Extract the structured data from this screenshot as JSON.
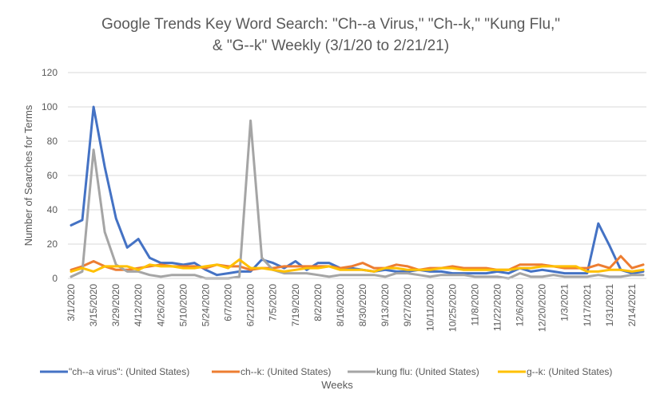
{
  "chart_data": {
    "type": "line",
    "title_lines": [
      "Google Trends Key Word Search: \"Ch--a Virus,\" \"Ch--k,\" \"Kung Flu,\"",
      "& \"G--k\"  Weekly (3/1/20 to 2/21/21)"
    ],
    "xlabel": "Weeks",
    "ylabel": "Number of Searches for Terms",
    "ylim": [
      0,
      120
    ],
    "yticks": [
      0,
      20,
      40,
      60,
      80,
      100,
      120
    ],
    "grid": "horizontal",
    "legend_position": "bottom",
    "x_tick_labels": [
      "3/1/2020",
      "3/15/2020",
      "3/29/2020",
      "4/12/2020",
      "4/26/2020",
      "5/10/2020",
      "5/24/2020",
      "6/7/2020",
      "6/21/2020",
      "7/5/2020",
      "7/19/2020",
      "8/2/2020",
      "8/16/2020",
      "8/30/2020",
      "9/13/2020",
      "9/27/2020",
      "10/11/2020",
      "10/25/2020",
      "11/8/2020",
      "11/22/2020",
      "12/6/2020",
      "12/20/2020",
      "1/3/2021",
      "1/17/2021",
      "1/31/2021",
      "2/14/2021"
    ],
    "x": [
      "3/1/2020",
      "3/8/2020",
      "3/15/2020",
      "3/22/2020",
      "3/29/2020",
      "4/5/2020",
      "4/12/2020",
      "4/19/2020",
      "4/26/2020",
      "5/3/2020",
      "5/10/2020",
      "5/17/2020",
      "5/24/2020",
      "5/31/2020",
      "6/7/2020",
      "6/14/2020",
      "6/21/2020",
      "6/28/2020",
      "7/5/2020",
      "7/12/2020",
      "7/19/2020",
      "7/26/2020",
      "8/2/2020",
      "8/9/2020",
      "8/16/2020",
      "8/23/2020",
      "8/30/2020",
      "9/6/2020",
      "9/13/2020",
      "9/20/2020",
      "9/27/2020",
      "10/4/2020",
      "10/11/2020",
      "10/18/2020",
      "10/25/2020",
      "11/1/2020",
      "11/8/2020",
      "11/15/2020",
      "11/22/2020",
      "11/29/2020",
      "12/6/2020",
      "12/13/2020",
      "12/20/2020",
      "12/27/2020",
      "1/3/2021",
      "1/10/2021",
      "1/17/2021",
      "1/24/2021",
      "1/31/2021",
      "2/7/2021",
      "2/14/2021",
      "2/21/2021"
    ],
    "series": [
      {
        "name": "\"ch--a virus\": (United States)",
        "color": "#4472C4",
        "values": [
          31,
          34,
          100,
          65,
          35,
          18,
          23,
          12,
          9,
          9,
          8,
          9,
          5,
          2,
          3,
          4,
          4,
          11,
          9,
          6,
          10,
          5,
          9,
          9,
          6,
          6,
          5,
          4,
          5,
          4,
          4,
          5,
          4,
          4,
          3,
          3,
          3,
          3,
          4,
          3,
          6,
          4,
          5,
          4,
          3,
          3,
          3,
          32,
          19,
          5,
          3,
          4
        ]
      },
      {
        "name": "ch--k: (United States)",
        "color": "#ED7D31",
        "values": [
          5,
          7,
          10,
          7,
          5,
          5,
          6,
          7,
          8,
          7,
          7,
          7,
          6,
          8,
          7,
          7,
          5,
          6,
          6,
          7,
          7,
          7,
          7,
          7,
          6,
          7,
          9,
          6,
          6,
          8,
          7,
          5,
          6,
          6,
          7,
          6,
          6,
          6,
          5,
          5,
          8,
          8,
          8,
          7,
          6,
          6,
          6,
          8,
          6,
          13,
          6,
          8
        ]
      },
      {
        "name": "kung flu: (United States)",
        "color": "#A5A5A5",
        "values": [
          1,
          4,
          75,
          27,
          8,
          4,
          4,
          2,
          1,
          2,
          2,
          2,
          0,
          0,
          0,
          1,
          92,
          12,
          5,
          3,
          3,
          3,
          2,
          1,
          2,
          2,
          2,
          2,
          1,
          3,
          3,
          2,
          1,
          2,
          2,
          2,
          1,
          1,
          1,
          0,
          3,
          1,
          1,
          2,
          1,
          1,
          1,
          2,
          1,
          1,
          2,
          2
        ]
      },
      {
        "name": "g--k: (United States)",
        "color": "#FFC000",
        "values": [
          4,
          6,
          4,
          7,
          7,
          7,
          5,
          8,
          7,
          7,
          6,
          6,
          7,
          8,
          6,
          11,
          6,
          6,
          5,
          4,
          5,
          6,
          6,
          7,
          5,
          5,
          5,
          4,
          6,
          6,
          5,
          5,
          5,
          6,
          6,
          5,
          5,
          5,
          5,
          5,
          6,
          6,
          7,
          7,
          7,
          7,
          4,
          4,
          5,
          5,
          4,
          5
        ]
      }
    ]
  }
}
